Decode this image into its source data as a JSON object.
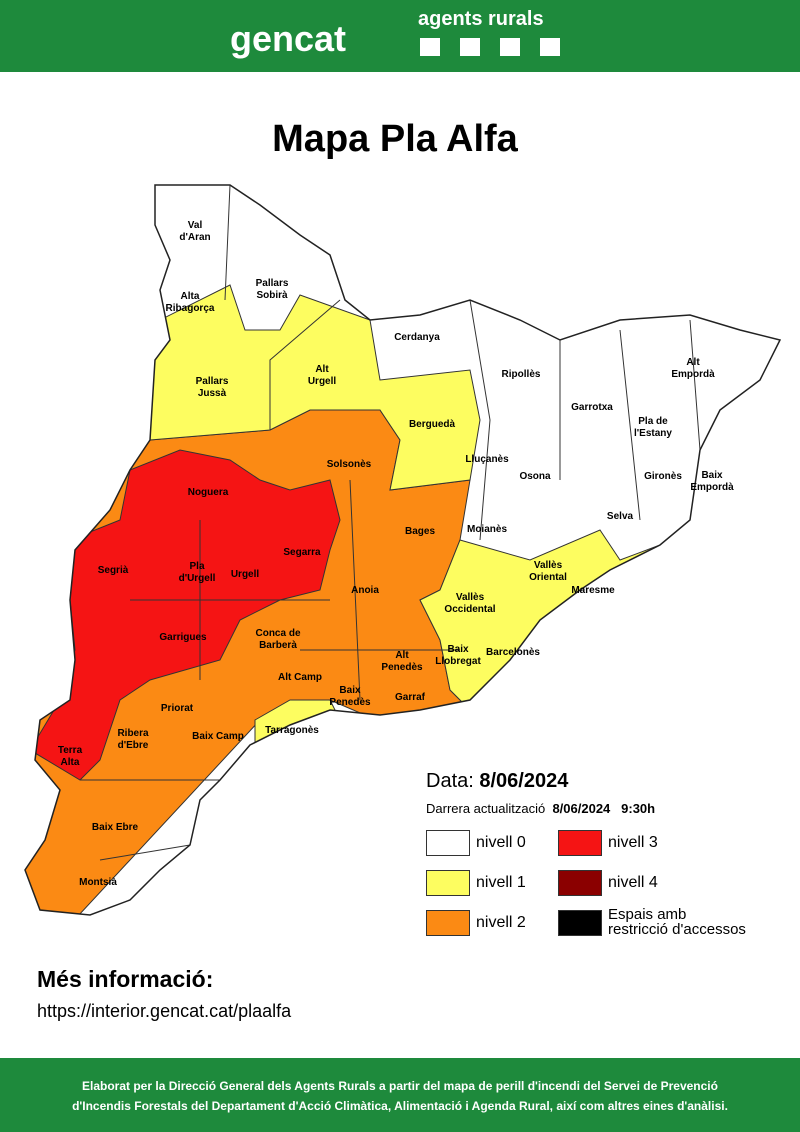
{
  "header": {
    "logo_text": "gencat",
    "unit": "agents rurals"
  },
  "title": "Mapa Pla Alfa",
  "map": {
    "regions": [
      "Val\nd'Aran",
      "Pallars\nSobirà",
      "Alta\nRibagorça",
      "Cerdanya",
      "Pallars\nJussà",
      "Alt\nUrgell",
      "Ripollès",
      "Alt\nEmpordà",
      "Garrotxa",
      "Pla de\nl'Estany",
      "Berguedà",
      "Solsonès",
      "Lluçanès",
      "Osona",
      "Gironès",
      "Baix\nEmpordà",
      "Noguera",
      "Selva",
      "Moianès",
      "Bages",
      "Segarra",
      "Pla\nd'Urgell",
      "Urgell",
      "Vallès\nOriental",
      "Segrià",
      "Anoia",
      "Maresme",
      "Vallès\nOccidental",
      "Garrigues",
      "Conca de\nBarberà",
      "Baix\nLlobregat",
      "Barcelonès",
      "Alt\nPenedès",
      "Alt Camp",
      "Baix\nPenedès",
      "Garraf",
      "Priorat",
      "Ribera\nd'Ebre",
      "Tarragonès",
      "Baix Camp",
      "Terra\nAlta",
      "Baix Ebre",
      "Montsià"
    ]
  },
  "legend": {
    "date_label": "Data:",
    "date": "8/06/2024",
    "update_label": "Darrera actualització",
    "update_date": "8/06/2024",
    "update_time": "9:30h",
    "items": [
      "nivell 0",
      "nivell 3",
      "nivell 1",
      "nivell 4",
      "nivell 2",
      "Espais amb\nrestricció d'accessos"
    ]
  },
  "more_info": {
    "title": "Més informació:",
    "url": "https://interior.gencat.cat/plaalfa"
  },
  "footer": {
    "lines": [
      "Elaborat per la Direcció General dels Agents Rurals a partir del mapa de perill d'incendi del Servei de Prevenció",
      "d'Incendis Forestals del Departament d'Acció Climàtica, Alimentació i Agenda Rural, així com altres eines d'anàlisi."
    ]
  }
}
